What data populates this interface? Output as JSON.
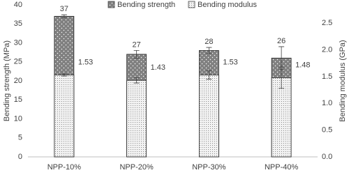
{
  "chart_data": {
    "type": "bar",
    "categories": [
      "NPP-10%",
      "NPP-20%",
      "NPP-30%",
      "NPP-40%"
    ],
    "y_label": "Bending strength (MPa)",
    "y2_label": "Bending modulus (GPa)",
    "ylim": [
      0,
      40
    ],
    "yticks": [
      0,
      5,
      10,
      15,
      20,
      25,
      30,
      35,
      40
    ],
    "y2lim": [
      0,
      2.84
    ],
    "y2ticks": [
      {
        "value": 0,
        "label": "0.0"
      },
      0.5,
      {
        "value": 1,
        "label": "1.0"
      },
      1.5,
      {
        "value": 2,
        "label": "2.0"
      },
      2.5
    ],
    "legend": "top",
    "series": [
      {
        "name": "Bending strength",
        "color": "#808080",
        "values": [
          37,
          27,
          28,
          26
        ],
        "errors": [
          0.4,
          1.0,
          0.8,
          3.0
        ]
      },
      {
        "name": "Bending modulus",
        "color": "#f2f2f2",
        "axis": "y2",
        "values": [
          1.53,
          1.43,
          1.53,
          1.48
        ],
        "errors": [
          0.02,
          0.05,
          0.08,
          0.2
        ]
      }
    ]
  }
}
